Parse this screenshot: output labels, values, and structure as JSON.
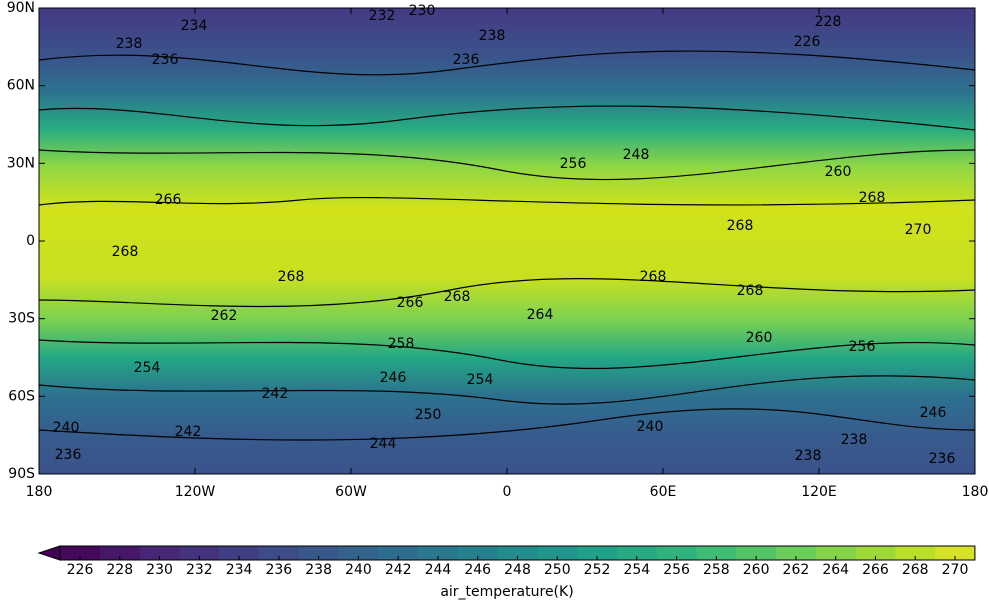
{
  "map": {
    "xticks": [
      {
        "value": -180,
        "label": "180"
      },
      {
        "value": -120,
        "label": "120W"
      },
      {
        "value": -60,
        "label": "60W"
      },
      {
        "value": 0,
        "label": "0"
      },
      {
        "value": 60,
        "label": "60E"
      },
      {
        "value": 120,
        "label": "120E"
      },
      {
        "value": 180,
        "label": "180"
      }
    ],
    "yticks": [
      {
        "value": 90,
        "label": "90N"
      },
      {
        "value": 60,
        "label": "60N"
      },
      {
        "value": 30,
        "label": "30N"
      },
      {
        "value": 0,
        "label": "0"
      },
      {
        "value": -30,
        "label": "30S"
      },
      {
        "value": -60,
        "label": "60S"
      },
      {
        "value": -90,
        "label": "90S"
      }
    ],
    "xlim": [
      -180,
      180
    ],
    "ylim": [
      -90,
      90
    ],
    "contour_labels": [
      234,
      232,
      230,
      228,
      226,
      238,
      236,
      238,
      236,
      248,
      256,
      266,
      268,
      260,
      268,
      270,
      268,
      268,
      266,
      268,
      268,
      268,
      262,
      260,
      256,
      258,
      254,
      246,
      242,
      250,
      240,
      242,
      244,
      240,
      246,
      238,
      238,
      236,
      236,
      264,
      254
    ]
  },
  "colorbar": {
    "label": "air_temperature(K)",
    "colormap": "viridis",
    "ticks": [
      226,
      228,
      230,
      232,
      234,
      236,
      238,
      240,
      242,
      244,
      246,
      248,
      250,
      252,
      254,
      256,
      258,
      260,
      262,
      264,
      266,
      268,
      270
    ]
  }
}
